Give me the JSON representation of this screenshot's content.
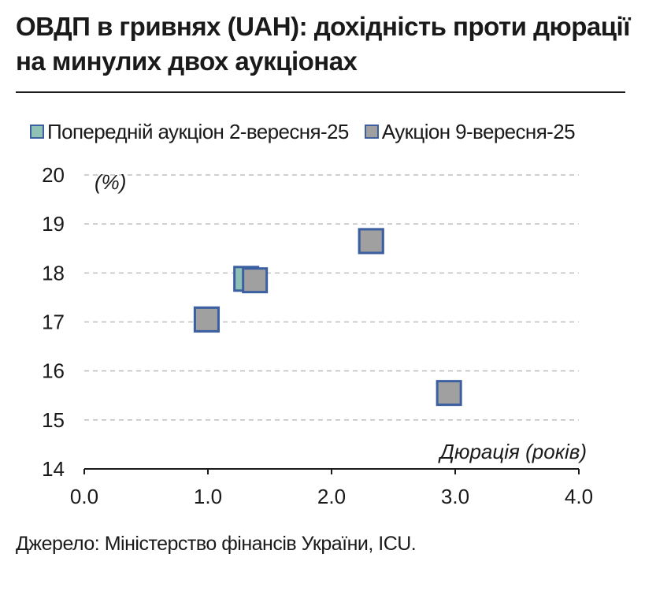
{
  "chart_data": {
    "type": "scatter",
    "title": "ОВДП в гривнях (UAH): дохідність проти дюрації на минулих двох аукціонах",
    "ylabel": "(%)",
    "xlabel": "Дюрація (років)",
    "xlim": [
      0,
      4
    ],
    "ylim": [
      14,
      20
    ],
    "xticks": [
      "0.0",
      "1.0",
      "2.0",
      "3.0",
      "4.0"
    ],
    "yticks": [
      "14",
      "15",
      "16",
      "17",
      "18",
      "19",
      "20"
    ],
    "grid": true,
    "legend_position": "top",
    "series": [
      {
        "name": "Попередній аукціон 2-вересня-25",
        "color": "#8fc1b4",
        "points": [
          {
            "x": 0.99,
            "y": 17.05
          },
          {
            "x": 1.31,
            "y": 17.88
          },
          {
            "x": 2.32,
            "y": 18.65
          }
        ]
      },
      {
        "name": "Аукціон 9-вересня-25",
        "color": "#a0a0a0",
        "points": [
          {
            "x": 0.99,
            "y": 17.05
          },
          {
            "x": 1.38,
            "y": 17.85
          },
          {
            "x": 2.32,
            "y": 18.65
          },
          {
            "x": 2.95,
            "y": 15.55
          }
        ]
      }
    ],
    "source": "Джерело: Міністерство фінансів України, ICU."
  },
  "colors": {
    "border": "#3b5fa0",
    "grid": "#bfbfbf"
  }
}
